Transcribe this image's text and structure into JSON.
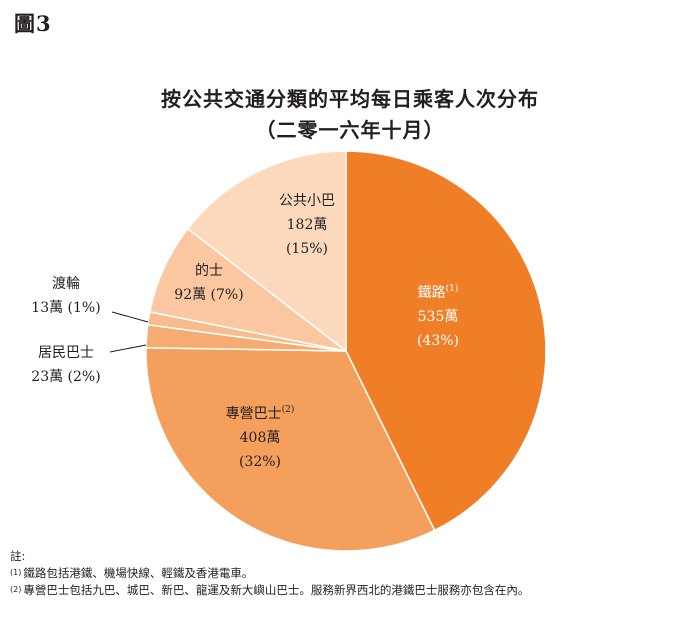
{
  "figure_label": "圖3",
  "chart_data": {
    "type": "pie",
    "title": "按公共交通分類的平均每日乘客人次分布",
    "subtitle": "（二零一六年十月）",
    "slices": [
      {
        "label": "鐵路",
        "note_ref": "(1)",
        "value_text": "535萬",
        "percent_text": "(43%)",
        "value": 535,
        "percent": 43,
        "color": "#f07e26"
      },
      {
        "label": "專營巴士",
        "note_ref": "(2)",
        "value_text": "408萬",
        "percent_text": "(32%)",
        "value": 408,
        "percent": 32,
        "color": "#f4a05c"
      },
      {
        "label": "居民巴士",
        "note_ref": "",
        "value_text": "23萬 (2%)",
        "percent_text": "",
        "value": 23,
        "percent": 2,
        "color": "#f6ab72"
      },
      {
        "label": "渡輪",
        "note_ref": "",
        "value_text": "13萬 (1%)",
        "percent_text": "",
        "value": 13,
        "percent": 1,
        "color": "#f8bb8c"
      },
      {
        "label": "的士",
        "note_ref": "",
        "value_text": "92萬 (7%)",
        "percent_text": "",
        "value": 92,
        "percent": 7,
        "color": "#fac7a0"
      },
      {
        "label": "公共小巴",
        "note_ref": "",
        "value_text": "182萬",
        "percent_text": "(15%)",
        "value": 182,
        "percent": 15,
        "color": "#fcd9bd"
      }
    ]
  },
  "notes": {
    "heading": "註:",
    "items": [
      {
        "marker": "(1)",
        "text": "鐵路包括港鐵、機場快線、輕鐵及香港電車。"
      },
      {
        "marker": "(2)",
        "text": "專營巴士包括九巴、城巴、新巴、龍運及新大嶼山巴士。服務新界西北的港鐵巴士服務亦包含在內。"
      }
    ]
  }
}
